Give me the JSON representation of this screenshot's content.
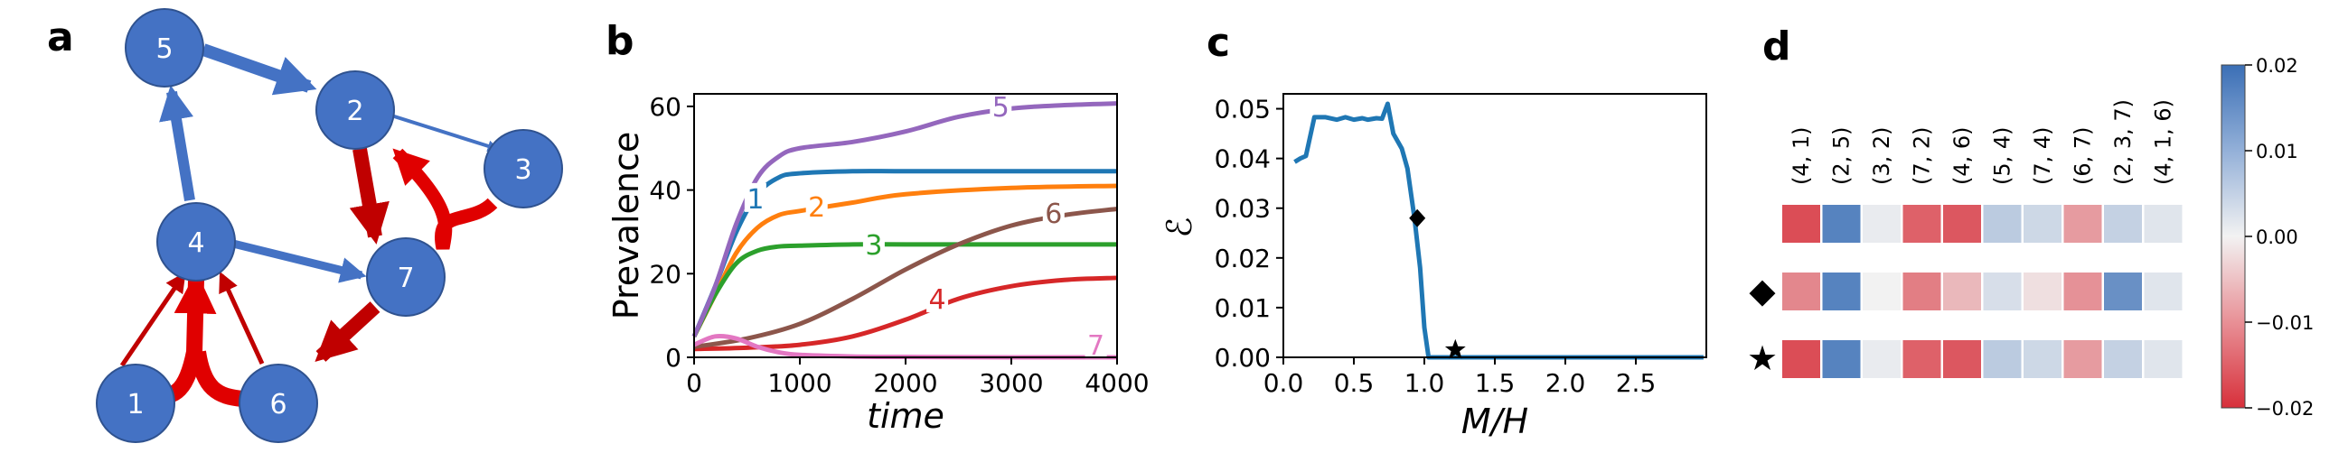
{
  "panels": {
    "a": "a",
    "b": "b",
    "c": "c",
    "d": "d"
  },
  "colors": {
    "node": "#4472c4",
    "blue_edge": "#4472c4",
    "red_edge": "#e00000",
    "darkred_edge": "#c00000"
  },
  "network": {
    "nodes": [
      {
        "id": "1",
        "label": "1"
      },
      {
        "id": "2",
        "label": "2"
      },
      {
        "id": "3",
        "label": "3"
      },
      {
        "id": "4",
        "label": "4"
      },
      {
        "id": "5",
        "label": "5"
      },
      {
        "id": "6",
        "label": "6"
      },
      {
        "id": "7",
        "label": "7"
      }
    ],
    "edges": [
      {
        "from": "5",
        "to": "2",
        "color": "blue",
        "weight": "heavy"
      },
      {
        "from": "2",
        "to": "3",
        "color": "blue",
        "weight": "thin"
      },
      {
        "from": "4",
        "to": "5",
        "color": "blue",
        "weight": "medium"
      },
      {
        "from": "4",
        "to": "7",
        "color": "blue",
        "weight": "medium"
      },
      {
        "from": "2",
        "to": "7",
        "color": "darkred",
        "weight": "heavy"
      },
      {
        "from": "3",
        "to": "2",
        "color": "red",
        "weight": "heavy",
        "via": "7"
      },
      {
        "from": "7",
        "to": "6",
        "color": "darkred",
        "weight": "heavy"
      },
      {
        "from": "1",
        "to": "4",
        "color": "darkred",
        "weight": "thin"
      },
      {
        "from": "6",
        "to": "4",
        "color": "darkred",
        "weight": "thin"
      },
      {
        "from": "1",
        "to": "4",
        "color": "red",
        "weight": "heavy",
        "via": "6"
      }
    ]
  },
  "chart_data": [
    {
      "panel": "b",
      "type": "line",
      "xlabel": "time",
      "ylabel": "Prevalence",
      "xlim": [
        0,
        4000
      ],
      "ylim": [
        0,
        63
      ],
      "xticks": [
        "0",
        "1000",
        "2000",
        "3000",
        "4000"
      ],
      "yticks": [
        "0",
        "20",
        "40",
        "60"
      ],
      "series": [
        {
          "name": "1",
          "color": "#1f77b4",
          "x": [
            0,
            200,
            400,
            600,
            800,
            1000,
            1500,
            2000,
            3000,
            4000
          ],
          "y": [
            5,
            17,
            30,
            39,
            43,
            44,
            44.5,
            44.5,
            44.5,
            44.5
          ]
        },
        {
          "name": "2",
          "color": "#ff7f0e",
          "x": [
            0,
            200,
            400,
            600,
            800,
            1000,
            1500,
            2000,
            3000,
            4000
          ],
          "y": [
            5,
            15,
            25,
            31,
            34,
            35,
            37,
            39,
            40.5,
            41
          ]
        },
        {
          "name": "3",
          "color": "#2ca02c",
          "x": [
            0,
            200,
            400,
            600,
            800,
            1000,
            1500,
            2000,
            3000,
            4000
          ],
          "y": [
            5,
            15,
            22.5,
            25.5,
            26.5,
            26.7,
            27,
            27,
            27,
            27
          ]
        },
        {
          "name": "4",
          "color": "#d62728",
          "x": [
            0,
            500,
            1000,
            1500,
            2000,
            2500,
            3000,
            3500,
            4000
          ],
          "y": [
            2,
            2.3,
            3,
            5,
            9,
            14,
            17,
            18.5,
            19
          ]
        },
        {
          "name": "5",
          "color": "#9467bd",
          "x": [
            0,
            200,
            400,
            600,
            800,
            1000,
            1500,
            2000,
            2500,
            3000,
            3500,
            4000
          ],
          "y": [
            5,
            17,
            32,
            43,
            48,
            50,
            51.5,
            54,
            57.5,
            59.5,
            60.3,
            60.7
          ]
        },
        {
          "name": "6",
          "color": "#8c564b",
          "x": [
            0,
            500,
            1000,
            1500,
            2000,
            2500,
            3000,
            3500,
            4000
          ],
          "y": [
            2.5,
            4.5,
            8,
            14,
            21,
            27,
            31.5,
            34,
            35.5
          ]
        },
        {
          "name": "7",
          "color": "#e377c2",
          "x": [
            0,
            200,
            400,
            600,
            800,
            1000,
            1500,
            2000,
            3000,
            4000
          ],
          "y": [
            3,
            5,
            4.5,
            2.5,
            1.2,
            0.6,
            0.2,
            0.1,
            0,
            0
          ]
        }
      ]
    },
    {
      "panel": "c",
      "type": "line",
      "xlabel": "M/H",
      "ylabel": "ℰ",
      "xlim": [
        0,
        3.0
      ],
      "ylim": [
        0,
        0.053
      ],
      "xticks": [
        "0.0",
        "0.5",
        "1.0",
        "1.5",
        "2.0",
        "2.5"
      ],
      "yticks": [
        "0.00",
        "0.01",
        "0.02",
        "0.03",
        "0.04",
        "0.05"
      ],
      "series": [
        {
          "name": "E",
          "color": "#1f77b4",
          "x": [
            0.08,
            0.12,
            0.16,
            0.22,
            0.3,
            0.38,
            0.44,
            0.5,
            0.56,
            0.6,
            0.66,
            0.7,
            0.74,
            0.78,
            0.84,
            0.88,
            0.93,
            0.97,
            1.0,
            1.03,
            1.06,
            1.1,
            1.5,
            2.0,
            2.5,
            2.98
          ],
          "y": [
            0.0393,
            0.04,
            0.0405,
            0.0483,
            0.0483,
            0.0478,
            0.0483,
            0.0478,
            0.0481,
            0.0478,
            0.0481,
            0.048,
            0.051,
            0.045,
            0.042,
            0.038,
            0.028,
            0.018,
            0.006,
            0.0,
            0.0,
            0.0,
            0.0,
            0.0,
            0.0,
            0.0
          ]
        }
      ],
      "markers": [
        {
          "name": "diamond",
          "x": 0.95,
          "y": 0.028
        },
        {
          "name": "star",
          "x": 1.22,
          "y": 0.0015
        }
      ]
    },
    {
      "panel": "d",
      "type": "heatmap",
      "columns": [
        "(4, 1)",
        "(2, 5)",
        "(3, 2)",
        "(7, 2)",
        "(4, 6)",
        "(5, 4)",
        "(7, 4)",
        "(6, 7)",
        "(2, 3, 7)",
        "(4, 1, 6)"
      ],
      "rows": [
        {
          "marker": "",
          "values": [
            -0.017,
            0.017,
            0.001,
            -0.015,
            -0.016,
            0.006,
            0.004,
            -0.009,
            0.005,
            0.002
          ]
        },
        {
          "marker": "◆",
          "values": [
            -0.011,
            0.017,
            0.0,
            -0.012,
            -0.006,
            0.003,
            -0.002,
            -0.01,
            0.015,
            0.002
          ]
        },
        {
          "marker": "★",
          "values": [
            -0.017,
            0.017,
            0.001,
            -0.015,
            -0.016,
            0.006,
            0.004,
            -0.009,
            0.005,
            0.002
          ]
        }
      ],
      "colorbar": {
        "min": -0.02,
        "max": 0.02,
        "ticks": [
          "0.02",
          "0.01",
          "0.00",
          "−0.01",
          "−0.02"
        ]
      }
    }
  ]
}
